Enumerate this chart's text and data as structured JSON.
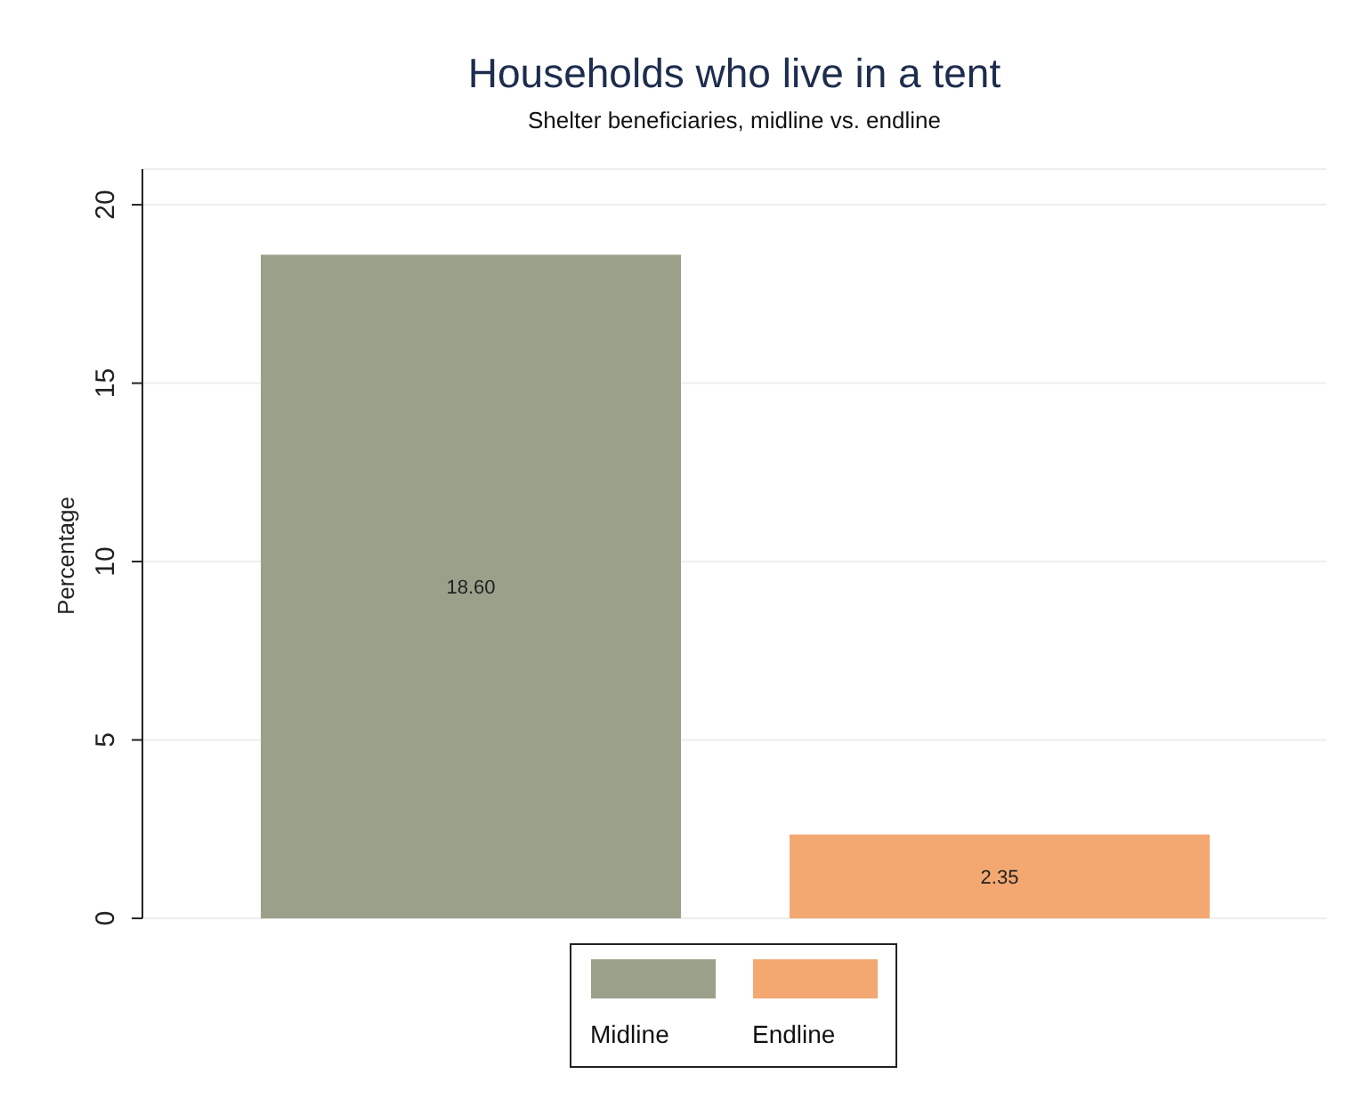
{
  "chart_data": {
    "type": "bar",
    "title": "Households who live in a tent",
    "subtitle": "Shelter beneficiaries, midline vs. endline",
    "ylabel": "Percentage",
    "categories": [
      null
    ],
    "series": [
      {
        "name": "Midline",
        "color": "#9ba08a",
        "values": [
          18.6
        ],
        "value_labels": [
          "18.60"
        ]
      },
      {
        "name": "Endline",
        "color": "#f4a871",
        "values": [
          2.35
        ],
        "value_labels": [
          "2.35"
        ]
      }
    ],
    "ylim": [
      0,
      21
    ],
    "yticks": [
      0,
      5,
      10,
      15,
      20
    ],
    "grid": "y",
    "legend": "bottom"
  }
}
